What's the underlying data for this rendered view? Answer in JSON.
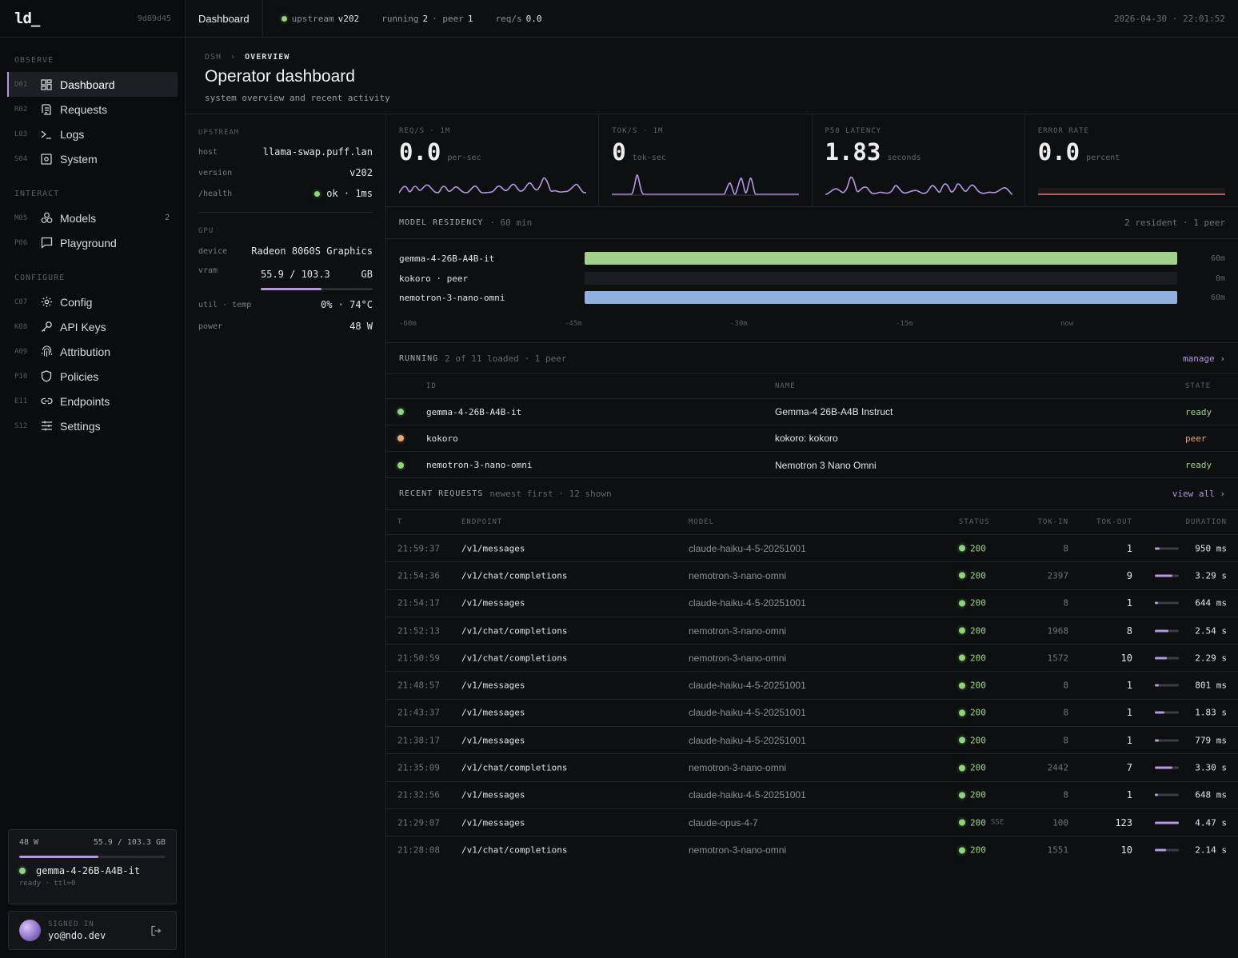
{
  "brand": {
    "logo": "ld_",
    "hash": "9d89d45"
  },
  "nav": {
    "sections": [
      "OBSERVE",
      "INTERACT",
      "CONFIGURE"
    ],
    "items": [
      {
        "code": "D01",
        "label": "Dashboard",
        "icon": "dashboard-icon",
        "active": true
      },
      {
        "code": "R02",
        "label": "Requests",
        "icon": "requests-icon"
      },
      {
        "code": "L03",
        "label": "Logs",
        "icon": "terminal-icon"
      },
      {
        "code": "S04",
        "label": "System",
        "icon": "system-icon"
      },
      {
        "code": "M05",
        "label": "Models",
        "icon": "models-icon",
        "badge": "2"
      },
      {
        "code": "P06",
        "label": "Playground",
        "icon": "chat-icon"
      },
      {
        "code": "C07",
        "label": "Config",
        "icon": "gear-icon"
      },
      {
        "code": "K08",
        "label": "API Keys",
        "icon": "key-icon"
      },
      {
        "code": "A09",
        "label": "Attribution",
        "icon": "fingerprint-icon"
      },
      {
        "code": "P10",
        "label": "Policies",
        "icon": "shield-icon"
      },
      {
        "code": "E11",
        "label": "Endpoints",
        "icon": "link-icon"
      },
      {
        "code": "S12",
        "label": "Settings",
        "icon": "sliders-icon"
      }
    ]
  },
  "power_card": {
    "watts": "48 W",
    "vram": "55.9 / 103.3 GB",
    "vram_fraction": 0.54,
    "model": "gemma-4-26B-A4B-it",
    "sub": "ready · ttl=0"
  },
  "user": {
    "signed_label": "SIGNED IN",
    "email": "yo@ndo.dev"
  },
  "topbar": {
    "crumb": "Dashboard",
    "upstream_label": "upstream",
    "upstream_value": "v202",
    "running_label": "running",
    "running_value": "2",
    "peer_label": "· peer",
    "peer_value": "1",
    "rps_label": "req/s",
    "rps_value": "0.0",
    "clock": "2026-04-30 · 22:01:52"
  },
  "page": {
    "bc_root": "DSH",
    "bc_sep": "›",
    "bc_current": "OVERVIEW",
    "title": "Operator dashboard",
    "description": "system overview and recent activity"
  },
  "upstream": {
    "heading": "UPSTREAM",
    "host_k": "host",
    "host_v": "llama-swap.puff.lan",
    "version_k": "version",
    "version_v": "v202",
    "health_k": "/health",
    "health_v": "ok · 1ms"
  },
  "gpu": {
    "heading": "GPU",
    "device_k": "device",
    "device_v": "Radeon 8060S Graphics",
    "vram_k": "vram",
    "vram_v": "55.9 / 103.3",
    "vram_unit": "GB",
    "vram_fraction": 0.54,
    "util_k": "util · temp",
    "util_v": "0% · 74°C",
    "power_k": "power",
    "power_v": "48 W"
  },
  "metrics": [
    {
      "label": "REQ/S · 1M",
      "value": "0.0",
      "unit": "per-sec",
      "color": "#b597e6"
    },
    {
      "label": "TOK/S · 1M",
      "value": "0",
      "unit": "tok-sec",
      "color": "#b597e6"
    },
    {
      "label": "P50 LATENCY",
      "value": "1.83",
      "unit": "seconds",
      "color": "#b597e6"
    },
    {
      "label": "ERROR RATE",
      "value": "0.0",
      "unit": "percent",
      "color": "#e07a7a"
    }
  ],
  "residency": {
    "title": "MODEL RESIDENCY",
    "sub": "· 60 min",
    "right": "2 resident · 1 peer",
    "rows": [
      {
        "name": "gemma-4-26B-A4B-it",
        "minutes": "60m",
        "fraction": 1.0,
        "color": "#a4d18a"
      },
      {
        "name": "kokoro · peer",
        "minutes": "0m",
        "fraction": 0.0,
        "color": "#1a1d22"
      },
      {
        "name": "nemotron-3-nano-omni",
        "minutes": "60m",
        "fraction": 1.0,
        "color": "#8fb0de"
      }
    ],
    "axis": [
      "-60m",
      "-45m",
      "-30m",
      "-15m",
      "now"
    ]
  },
  "running": {
    "title": "RUNNING",
    "sub": "2 of 11 loaded · 1 peer",
    "link": "manage ›",
    "headers": [
      "ID",
      "NAME",
      "STATE"
    ],
    "rows": [
      {
        "id": "gemma-4-26B-A4B-it",
        "name": "Gemma-4 26B-A4B Instruct",
        "state": "ready",
        "dot": "green"
      },
      {
        "id": "kokoro",
        "name": "kokoro: kokoro",
        "state": "peer",
        "dot": "orange"
      },
      {
        "id": "nemotron-3-nano-omni",
        "name": "Nemotron 3 Nano Omni",
        "state": "ready",
        "dot": "green"
      }
    ]
  },
  "requests": {
    "title": "RECENT REQUESTS",
    "sub": "newest first · 12 shown",
    "link": "view all ›",
    "headers": [
      "T",
      "ENDPOINT",
      "MODEL",
      "STATUS",
      "TOK-IN",
      "TOK-OUT",
      "DURATION"
    ],
    "rows": [
      {
        "t": "21:59:37",
        "ep": "/v1/messages",
        "model": "claude-haiku-4-5-20251001",
        "status": "200",
        "sse": "",
        "in": "8",
        "out": "1",
        "dur": "950 ms",
        "frac": 0.21
      },
      {
        "t": "21:54:36",
        "ep": "/v1/chat/completions",
        "model": "nemotron-3-nano-omni",
        "status": "200",
        "sse": "",
        "in": "2397",
        "out": "9",
        "dur": "3.29 s",
        "frac": 0.74
      },
      {
        "t": "21:54:17",
        "ep": "/v1/messages",
        "model": "claude-haiku-4-5-20251001",
        "status": "200",
        "sse": "",
        "in": "8",
        "out": "1",
        "dur": "644 ms",
        "frac": 0.14
      },
      {
        "t": "21:52:13",
        "ep": "/v1/chat/completions",
        "model": "nemotron-3-nano-omni",
        "status": "200",
        "sse": "",
        "in": "1968",
        "out": "8",
        "dur": "2.54 s",
        "frac": 0.57
      },
      {
        "t": "21:50:59",
        "ep": "/v1/chat/completions",
        "model": "nemotron-3-nano-omni",
        "status": "200",
        "sse": "",
        "in": "1572",
        "out": "10",
        "dur": "2.29 s",
        "frac": 0.51
      },
      {
        "t": "21:48:57",
        "ep": "/v1/messages",
        "model": "claude-haiku-4-5-20251001",
        "status": "200",
        "sse": "",
        "in": "8",
        "out": "1",
        "dur": "801 ms",
        "frac": 0.18
      },
      {
        "t": "21:43:37",
        "ep": "/v1/messages",
        "model": "claude-haiku-4-5-20251001",
        "status": "200",
        "sse": "",
        "in": "8",
        "out": "1",
        "dur": "1.83 s",
        "frac": 0.41
      },
      {
        "t": "21:38:17",
        "ep": "/v1/messages",
        "model": "claude-haiku-4-5-20251001",
        "status": "200",
        "sse": "",
        "in": "8",
        "out": "1",
        "dur": "779 ms",
        "frac": 0.17
      },
      {
        "t": "21:35:09",
        "ep": "/v1/chat/completions",
        "model": "nemotron-3-nano-omni",
        "status": "200",
        "sse": "",
        "in": "2442",
        "out": "7",
        "dur": "3.30 s",
        "frac": 0.74
      },
      {
        "t": "21:32:56",
        "ep": "/v1/messages",
        "model": "claude-haiku-4-5-20251001",
        "status": "200",
        "sse": "",
        "in": "8",
        "out": "1",
        "dur": "648 ms",
        "frac": 0.14
      },
      {
        "t": "21:29:07",
        "ep": "/v1/messages",
        "model": "claude-opus-4-7",
        "status": "200",
        "sse": "SSE",
        "in": "100",
        "out": "123",
        "dur": "4.47 s",
        "frac": 1.0
      },
      {
        "t": "21:28:08",
        "ep": "/v1/chat/completions",
        "model": "nemotron-3-nano-omni",
        "status": "200",
        "sse": "",
        "in": "1551",
        "out": "10",
        "dur": "2.14 s",
        "frac": 0.48
      }
    ]
  }
}
